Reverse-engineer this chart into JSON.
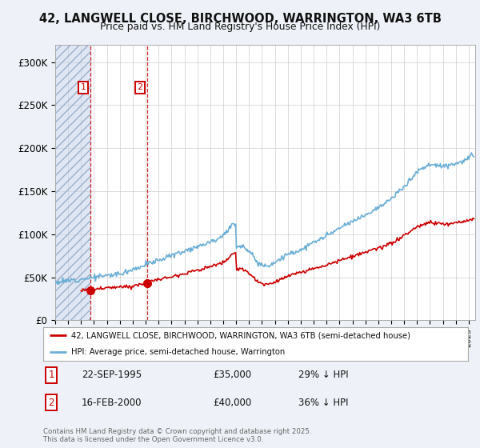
{
  "title_line1": "42, LANGWELL CLOSE, BIRCHWOOD, WARRINGTON, WA3 6TB",
  "title_line2": "Price paid vs. HM Land Registry's House Price Index (HPI)",
  "ylim": [
    0,
    320000
  ],
  "yticks": [
    0,
    50000,
    100000,
    150000,
    200000,
    250000,
    300000
  ],
  "ytick_labels": [
    "£0",
    "£50K",
    "£100K",
    "£150K",
    "£200K",
    "£250K",
    "£300K"
  ],
  "hpi_color": "#6baed6",
  "price_color": "#cc0000",
  "sale1_date": "22-SEP-1995",
  "sale1_price": 35000,
  "sale1_price_str": "£35,000",
  "sale1_pct": "29% ↓ HPI",
  "sale1_x": 1995.72,
  "sale1_y": 35000,
  "sale2_date": "16-FEB-2000",
  "sale2_price": 40000,
  "sale2_price_str": "£40,000",
  "sale2_pct": "36% ↓ HPI",
  "sale2_x": 2000.12,
  "sale2_y": 40000,
  "legend_label1": "42, LANGWELL CLOSE, BIRCHWOOD, WARRINGTON, WA3 6TB (semi-detached house)",
  "legend_label2": "HPI: Average price, semi-detached house, Warrington",
  "footnote": "Contains HM Land Registry data © Crown copyright and database right 2025.\nThis data is licensed under the Open Government Licence v3.0.",
  "background_color": "#eef2f8",
  "plot_bg_color": "#ffffff",
  "xlim_left": 1993,
  "xlim_right": 2025.5,
  "hatch_end": 1995.72
}
